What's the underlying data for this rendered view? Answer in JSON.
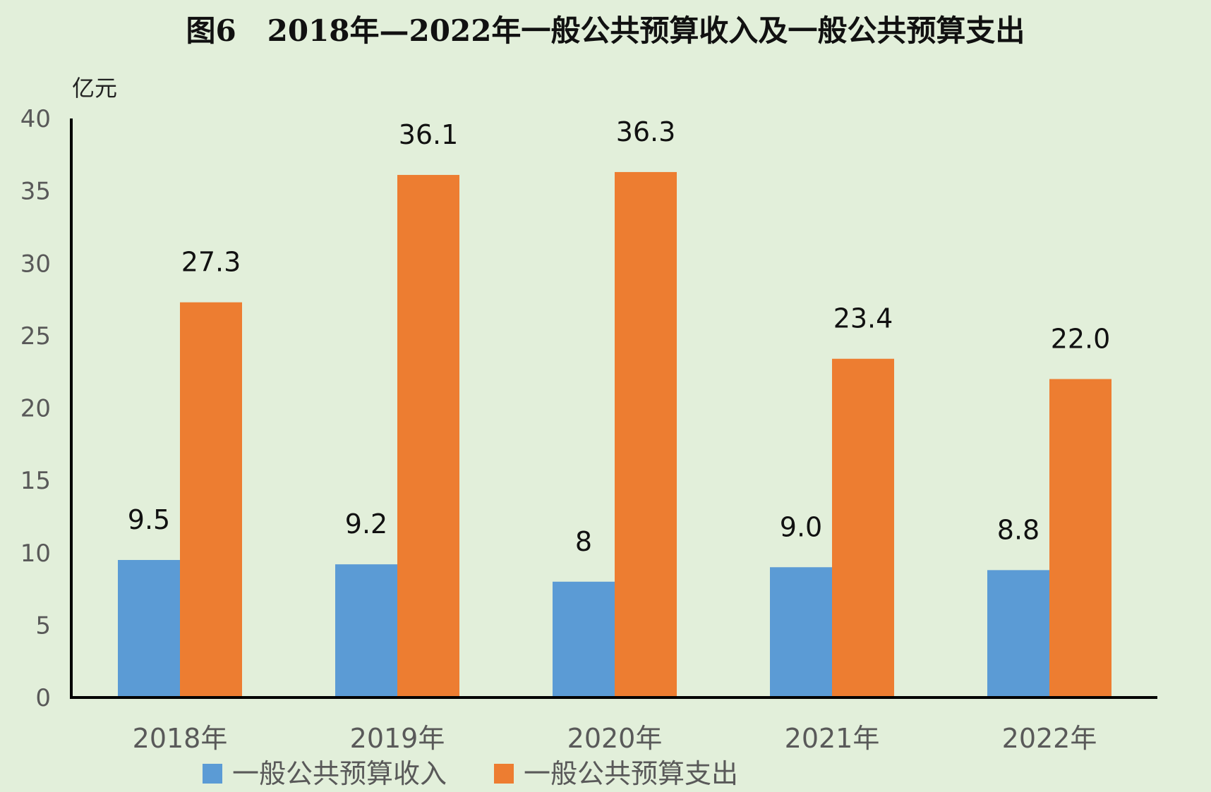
{
  "chart_data": {
    "type": "bar",
    "title": "图6   2018年—2022年一般公共预算收入及一般公共预算支出",
    "unit_label": "亿元",
    "categories": [
      "2018年",
      "2019年",
      "2020年",
      "2021年",
      "2022年"
    ],
    "series": [
      {
        "name": "一般公共预算收入",
        "color": "#5b9bd5",
        "values": [
          9.5,
          9.2,
          8,
          9.0,
          8.8
        ],
        "labels": [
          "9.5",
          "9.2",
          "8",
          "9.0",
          "8.8"
        ]
      },
      {
        "name": "一般公共预算支出",
        "color": "#ed7d31",
        "values": [
          27.3,
          36.1,
          36.3,
          23.4,
          22.0
        ],
        "labels": [
          "27.3",
          "36.1",
          "36.3",
          "23.4",
          "22.0"
        ]
      }
    ],
    "ylim": [
      0,
      40
    ],
    "yticks": [
      0,
      5,
      10,
      15,
      20,
      25,
      30,
      35,
      40
    ],
    "grid": false,
    "legend_position": "bottom"
  }
}
